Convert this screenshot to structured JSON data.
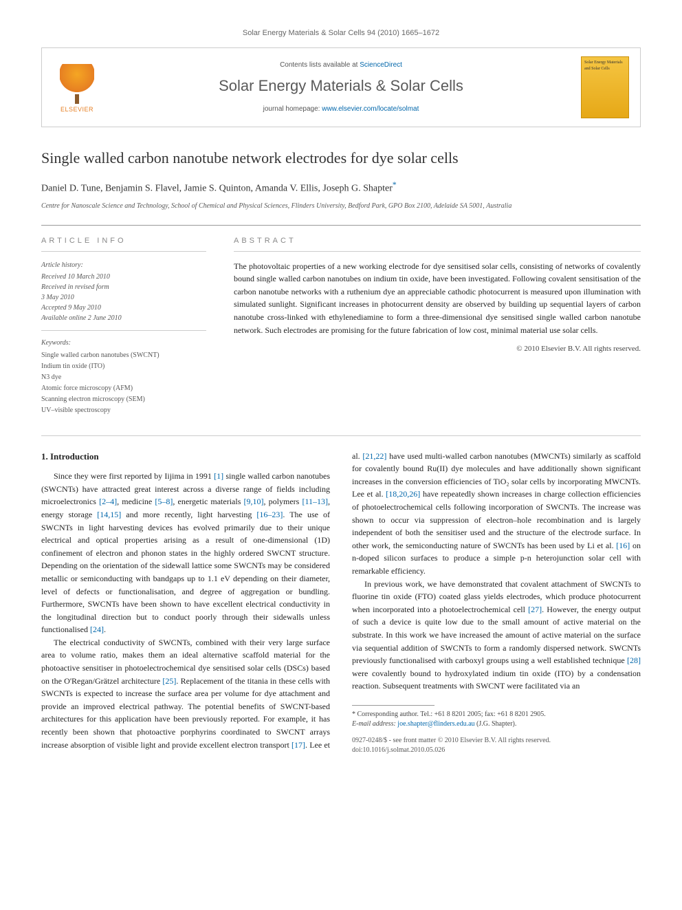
{
  "page_header": "Solar Energy Materials & Solar Cells 94 (2010) 1665–1672",
  "banner": {
    "contents_prefix": "Contents lists available at ",
    "contents_link": "ScienceDirect",
    "journal_name": "Solar Energy Materials & Solar Cells",
    "homepage_prefix": "journal homepage: ",
    "homepage_link": "www.elsevier.com/locate/solmat",
    "publisher_label": "ELSEVIER",
    "cover_text": "Solar Energy Materials and Solar Cells"
  },
  "article": {
    "title": "Single walled carbon nanotube network electrodes for dye solar cells",
    "authors_html": "Daniel D. Tune, Benjamin S. Flavel, Jamie S. Quinton, Amanda V. Ellis, Joseph G. Shapter",
    "corresponding_mark": "*",
    "affiliation": "Centre for Nanoscale Science and Technology, School of Chemical and Physical Sciences, Flinders University, Bedford Park, GPO Box 2100, Adelaide SA 5001, Australia"
  },
  "section_labels": {
    "info": "ARTICLE INFO",
    "abstract": "ABSTRACT"
  },
  "history": {
    "title": "Article history:",
    "received": "Received 10 March 2010",
    "revised_l1": "Received in revised form",
    "revised_l2": "3 May 2010",
    "accepted": "Accepted 9 May 2010",
    "online": "Available online 2 June 2010"
  },
  "keywords": {
    "title": "Keywords:",
    "k1": "Single walled carbon nanotubes (SWCNT)",
    "k2": "Indium tin oxide (ITO)",
    "k3": "N3 dye",
    "k4": "Atomic force microscopy (AFM)",
    "k5": "Scanning electron microscopy (SEM)",
    "k6": "UV–visible spectroscopy"
  },
  "abstract": {
    "text": "The photovoltaic properties of a new working electrode for dye sensitised solar cells, consisting of networks of covalently bound single walled carbon nanotubes on indium tin oxide, have been investigated. Following covalent sensitisation of the carbon nanotube networks with a ruthenium dye an appreciable cathodic photocurrent is measured upon illumination with simulated sunlight. Significant increases in photocurrent density are observed by building up sequential layers of carbon nanotube cross-linked with ethylenediamine to form a three-dimensional dye sensitised single walled carbon nanotube network. Such electrodes are promising for the future fabrication of low cost, minimal material use solar cells.",
    "copyright": "© 2010 Elsevier B.V. All rights reserved."
  },
  "body": {
    "heading1": "1.  Introduction",
    "p1_a": "Since they were first reported by Iijima in 1991 ",
    "p1_r1": "[1]",
    "p1_b": " single walled carbon nanotubes (SWCNTs) have attracted great interest across a diverse range of fields including microelectronics ",
    "p1_r2": "[2–4]",
    "p1_c": ", medicine ",
    "p1_r3": "[5–8]",
    "p1_d": ", energetic materials ",
    "p1_r4": "[9,10]",
    "p1_e": ", polymers ",
    "p1_r5": "[11–13]",
    "p1_f": ", energy storage ",
    "p1_r6": "[14,15]",
    "p1_g": " and more recently, light harvesting ",
    "p1_r7": "[16–23]",
    "p1_h": ". The use of SWCNTs in light harvesting devices has evolved primarily due to their unique electrical and optical properties arising as a result of one-dimensional (1D) confinement of electron and phonon states in the highly ordered SWCNT structure. Depending on the orientation of the sidewall lattice some SWCNTs may be considered metallic or semiconducting with bandgaps up to 1.1 eV depending on their diameter, level of defects or functionalisation, and degree of aggregation or bundling. Furthermore, SWCNTs have been shown to have excellent electrical conductivity in the longitudinal direction but to conduct poorly through their sidewalls unless functionalised ",
    "p1_r8": "[24]",
    "p1_i": ".",
    "p2_a": "The electrical conductivity of SWCNTs, combined with their very large surface area to volume ratio, makes them an ideal alternative scaffold material for the photoactive sensitiser in photoelectrochemical dye sensitised solar cells (DSCs) based on the O'Regan/Grätzel architecture ",
    "p2_r1": "[25]",
    "p2_b": ". Replacement of the titania in these cells with SWCNTs is expected to increase the surface area per volume for dye attachment and provide an improved electrical pathway. The potential benefits of SWCNT-based architectures for this application have been previously reported. For example, it has recently been shown that photoactive porphyrins coordinated to SWCNT arrays increase absorption of visible light and provide excellent electron transport ",
    "p2_r2": "[17]",
    "p2_c": ". Lee et al. ",
    "p2_r3": "[21,22]",
    "p2_d": " have used multi-walled carbon nanotubes (MWCNTs) similarly as scaffold for covalently bound Ru(II) dye molecules and have additionally shown significant increases in the conversion efficiencies of TiO₂ solar cells by incorporating MWCNTs. Lee et al. ",
    "p2_r4": "[18,20,26]",
    "p2_e": " have repeatedly shown increases in charge collection efficiencies of photoelectrochemical cells following incorporation of SWCNTs. The increase was shown to occur via suppression of electron–hole recombination and is largely independent of both the sensitiser used and the structure of the electrode surface. In other work, the semiconducting nature of SWCNTs has been used by Li et al. ",
    "p2_r5": "[16]",
    "p2_f": " on n-doped silicon surfaces to produce a simple p-n heterojunction solar cell with remarkable efficiency.",
    "p3_a": "In previous work, we have demonstrated that covalent attachment of SWCNTs to fluorine tin oxide (FTO) coated glass yields electrodes, which produce photocurrent when incorporated into a photoelectrochemical cell ",
    "p3_r1": "[27]",
    "p3_b": ". However, the energy output of such a device is quite low due to the small amount of active material on the substrate. In this work we have increased the amount of active material on the surface via sequential addition of SWCNTs to form a randomly dispersed network. SWCNTs previously functionalised with carboxyl groups using a well established technique ",
    "p3_r2": "[28]",
    "p3_c": " were covalently bound to hydroxylated indium tin oxide (ITO) by a condensation reaction. Subsequent treatments with SWCNT were facilitated via an"
  },
  "footnote": {
    "corr_label": "* Corresponding author. Tel.: +61 8 8201 2005; fax: +61 8 8201 2905.",
    "email_label": "E-mail address: ",
    "email": "joe.shapter@flinders.edu.au",
    "email_suffix": " (J.G. Shapter)."
  },
  "bottom": {
    "issn_line": "0927-0248/$ - see front matter © 2010 Elsevier B.V. All rights reserved.",
    "doi_line": "doi:10.1016/j.solmat.2010.05.026"
  },
  "colors": {
    "link": "#0066aa",
    "text": "#222222",
    "muted": "#666666",
    "border": "#cccccc",
    "elsevier_orange": "#e67e22",
    "cover_bg": "#f5c542"
  }
}
